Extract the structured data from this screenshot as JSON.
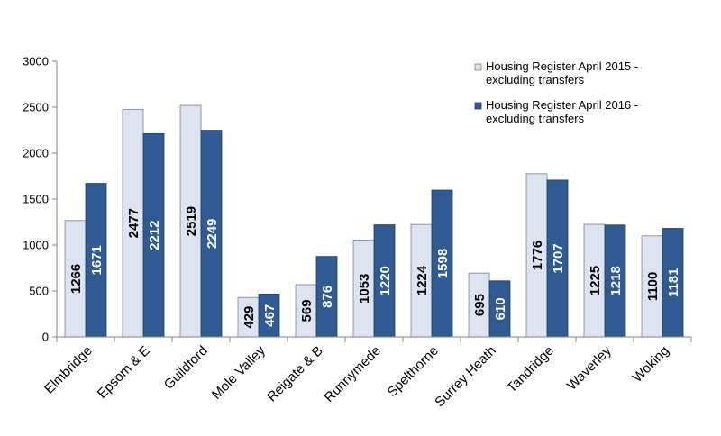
{
  "chart_data": {
    "type": "bar",
    "title": "",
    "xlabel": "",
    "ylabel": "",
    "ylim": [
      0,
      3000
    ],
    "yticks": [
      0,
      500,
      1000,
      1500,
      2000,
      2500,
      3000
    ],
    "grid": false,
    "legend_position": "top-right",
    "categories": [
      "Elmbridge",
      "Epsom & E",
      "Guildford",
      "Mole Valley",
      "Reigate & B",
      "Runnymede",
      "Spelthorne",
      "Surrey Heath",
      "Tandridge",
      "Waverley",
      "Woking"
    ],
    "series": [
      {
        "name": "Housing Register April 2015 - excluding transfers",
        "legend_lines": [
          "Housing Register April 2015 -",
          "excluding transfers"
        ],
        "color": "#dce3f1",
        "stroke": "#7f7f7f",
        "label_color": "#000000",
        "values": [
          1266,
          2477,
          2519,
          429,
          569,
          1053,
          1224,
          695,
          1776,
          1225,
          1100
        ]
      },
      {
        "name": "Housing Register April 2016 - excluding transfers",
        "legend_lines": [
          "Housing Register April 2016 -",
          "excluding transfers"
        ],
        "color": "#2f5a92",
        "stroke": "#1f3d66",
        "label_color": "#ffffff",
        "values": [
          1671,
          2212,
          2249,
          467,
          876,
          1220,
          1598,
          610,
          1707,
          1218,
          1181
        ]
      }
    ]
  }
}
